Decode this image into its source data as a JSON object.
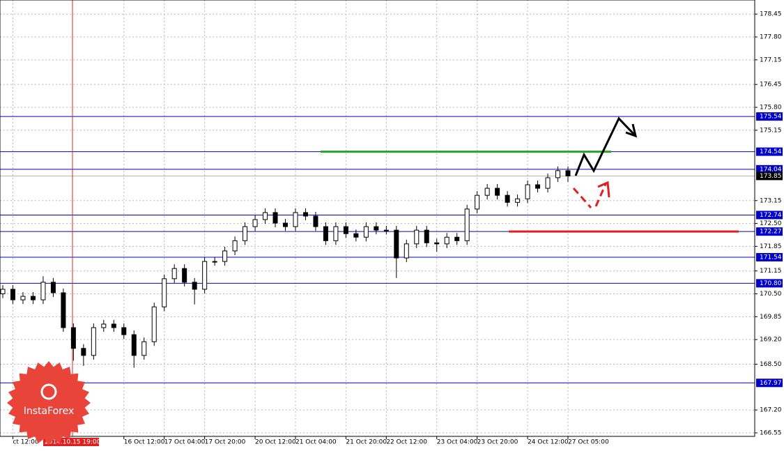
{
  "chart_data": {
    "type": "candlestick",
    "categories": [
      null,
      "ct 12:00",
      null,
      null,
      null,
      null,
      null,
      null,
      null,
      null,
      null,
      null,
      "16 Oct 12:00",
      null,
      null,
      null,
      "17 Oct 04:00",
      null,
      null,
      null,
      "17 Oct 20:00",
      null,
      null,
      null,
      null,
      "20 Oct 12:00",
      null,
      null,
      null,
      "21 Oct 04:00",
      null,
      null,
      null,
      null,
      "21 Oct 20:00",
      null,
      null,
      null,
      "22 Oct 12:00",
      null,
      null,
      null,
      null,
      "23 Oct 04:00",
      null,
      null,
      null,
      "23 Oct 20:00",
      null,
      null,
      null,
      null,
      "24 Oct 12:00",
      null,
      null,
      null,
      "27 Oct 05:00"
    ],
    "open": [
      170.5,
      170.63,
      170.33,
      170.43,
      170.33,
      170.83,
      170.53,
      169.54,
      168.95,
      168.75,
      169.54,
      169.64,
      169.54,
      169.34,
      168.75,
      169.14,
      170.13,
      170.93,
      171.22,
      170.83,
      170.63,
      171.42,
      171.42,
      171.72,
      172.01,
      172.41,
      172.61,
      172.81,
      172.51,
      172.41,
      172.81,
      172.71,
      172.41,
      172.01,
      172.41,
      172.21,
      172.11,
      172.41,
      172.31,
      172.31,
      171.52,
      171.92,
      172.31,
      171.95,
      171.92,
      172.11,
      172.01,
      172.91,
      173.3,
      173.5,
      173.3,
      173.1,
      173.2,
      173.6,
      173.5,
      173.8,
      174.0
    ],
    "high": [
      170.75,
      170.75,
      170.55,
      170.55,
      171.0,
      170.95,
      170.65,
      169.66,
      169.07,
      169.66,
      169.76,
      169.76,
      169.66,
      169.46,
      169.26,
      170.25,
      171.05,
      171.34,
      171.34,
      170.95,
      171.54,
      171.54,
      171.84,
      172.13,
      172.53,
      172.73,
      172.93,
      172.93,
      172.63,
      172.93,
      172.93,
      172.83,
      172.53,
      172.53,
      172.53,
      172.33,
      172.53,
      172.53,
      172.43,
      172.43,
      172.04,
      172.43,
      172.43,
      172.07,
      172.23,
      172.23,
      173.03,
      173.42,
      173.62,
      173.62,
      173.42,
      173.32,
      173.72,
      173.72,
      173.92,
      174.12,
      174.12
    ],
    "low": [
      170.38,
      170.21,
      170.21,
      170.21,
      170.21,
      170.41,
      169.42,
      168.6,
      168.45,
      168.63,
      169.42,
      169.42,
      169.22,
      168.4,
      168.63,
      169.02,
      170.01,
      170.81,
      170.71,
      170.2,
      170.51,
      171.3,
      171.3,
      171.6,
      171.89,
      172.29,
      172.49,
      172.39,
      172.29,
      172.29,
      172.59,
      172.29,
      171.89,
      171.89,
      172.09,
      171.99,
      171.99,
      172.19,
      172.19,
      170.95,
      171.4,
      171.8,
      171.83,
      171.7,
      171.8,
      171.89,
      171.89,
      172.79,
      173.18,
      173.18,
      172.98,
      172.98,
      173.08,
      173.38,
      173.38,
      173.68,
      173.68
    ],
    "close": [
      170.63,
      170.33,
      170.43,
      170.33,
      170.83,
      170.53,
      169.54,
      168.95,
      168.75,
      169.54,
      169.64,
      169.54,
      169.34,
      168.75,
      169.14,
      170.13,
      170.93,
      171.22,
      170.83,
      170.63,
      171.42,
      171.42,
      171.72,
      172.01,
      172.41,
      172.61,
      172.81,
      172.51,
      172.41,
      172.81,
      172.71,
      172.41,
      172.01,
      172.41,
      172.21,
      172.11,
      172.41,
      172.31,
      172.31,
      171.52,
      171.92,
      172.31,
      171.95,
      171.92,
      172.11,
      172.01,
      172.91,
      173.3,
      173.5,
      173.3,
      173.1,
      173.2,
      173.6,
      173.5,
      173.8,
      174.0,
      173.85
    ],
    "ylim": [
      166.45,
      178.85
    ],
    "yticks": [
      178.45,
      {
        "value": 177.8,
        "label": "177.80"
      },
      177.15,
      176.45,
      {
        "value": 175.8,
        "label": "175.80"
      },
      175.15,
      173.15,
      {
        "value": 172.5,
        "label": "172.50"
      },
      171.85,
      171.15,
      {
        "value": 170.5,
        "label": "170.50"
      },
      169.85,
      {
        "value": 169.2,
        "label": "169.20"
      },
      {
        "value": 168.5,
        "label": "168.50"
      },
      {
        "value": 167.2,
        "label": "167.20"
      },
      166.55
    ],
    "levels": [
      175.54,
      174.54,
      174.04,
      172.74,
      172.27,
      171.54,
      {
        "value": 170.8,
        "label": "170.80"
      },
      167.97
    ],
    "level_color": "#0000cc",
    "current_price": 173.85,
    "highlight_lines": [
      {
        "value": 174.54,
        "color": "#2ca02c"
      },
      {
        "value": 172.27,
        "color": "#e02020"
      }
    ],
    "cursor_label": "2014.10.15 19:00",
    "watermark": "InstaForex",
    "grid": true
  }
}
